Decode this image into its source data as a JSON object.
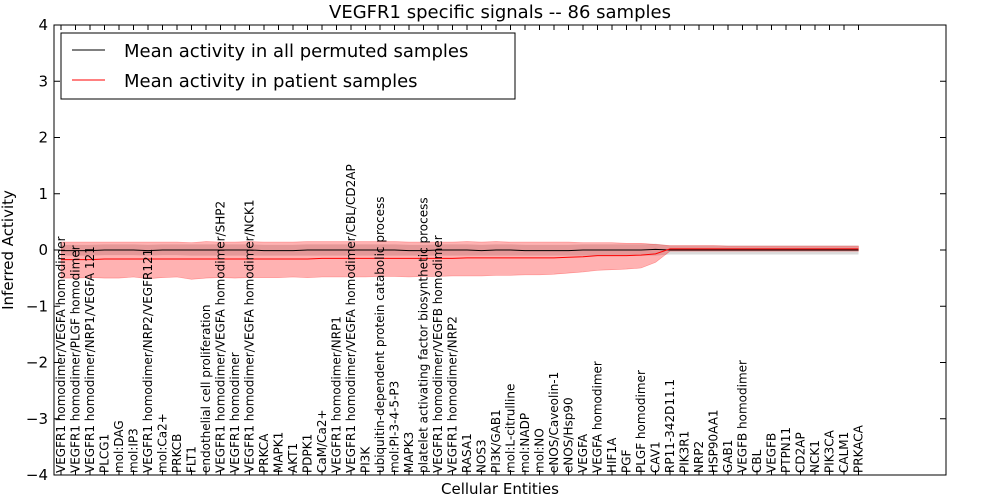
{
  "chart_data": {
    "type": "line",
    "title": "VEGFR1 specific signals -- 86 samples",
    "xlabel": "Cellular Entities",
    "ylabel": "Inferred Activity",
    "ylim": [
      -4,
      4
    ],
    "yticks": [
      -4,
      -3,
      -2,
      -1,
      0,
      1,
      2,
      3,
      4
    ],
    "grid": false,
    "legend_position": "top-left",
    "categories": [
      "VEGFR1 homodimer/VEGFA homodimer",
      "VEGFR1 homodimer/PLGF homodimer",
      "VEGFR1 homodimer/NRP1/VEGFA 121",
      "PLCG1",
      "mol:DAG",
      "mol:IP3",
      "VEGFR1 homodimer/NRP2/VEGFR121",
      "mol:Ca2+",
      "PRKCB",
      "FLT1",
      "endothelial cell proliferation",
      "VEGFR1 homodimer/VEGFA homodimer/SHP2",
      "VEGFR1 homodimer",
      "VEGFR1 homodimer/VEGFA homodimer/NCK1",
      "PRKCA",
      "MAPK1",
      "AKT1",
      "PDPK1",
      "CaM/Ca2+",
      "VEGFR1 homodimer/NRP1",
      "VEGFR1 homodimer/VEGFA homodimer/CBL/CD2AP",
      "PI3K",
      "ubiquitin-dependent protein catabolic process",
      "mol:PI-3-4-5-P3",
      "MAPK3",
      "platelet activating factor biosynthetic process",
      "VEGFR1 homodimer/VEGFB homodimer",
      "VEGFR1 homodimer/NRP2",
      "RASA1",
      "NOS3",
      "PI3K/GAB1",
      "mol:L-citrulline",
      "mol:NADP",
      "mol:NO",
      "eNOS/Caveolin-1",
      "eNOS/Hsp90",
      "VEGFA",
      "VEGFA homodimer",
      "HIF1A",
      "PGF",
      "PLGF homodimer",
      "CAV1",
      "RP11-342D11.1",
      "PIK3R1",
      "NRP2",
      "HSP90AA1",
      "GAB1",
      "VEGFB homodimer",
      "CBL",
      "VEGFB",
      "PTPN11",
      "CD2AP",
      "NCK1",
      "PIK3CA",
      "CALM1",
      "PRKACA"
    ],
    "series": [
      {
        "name": "Mean activity in all permuted samples",
        "color": "#000000",
        "values": [
          -0.01,
          -0.01,
          -0.01,
          0,
          0,
          0,
          -0.01,
          0,
          0,
          0,
          0,
          0,
          0,
          0,
          -0.01,
          -0.01,
          -0.01,
          0,
          0,
          0,
          0,
          0,
          0,
          0,
          -0.01,
          -0.01,
          0,
          0,
          0,
          -0.01,
          0,
          0,
          -0.01,
          -0.01,
          -0.01,
          -0.01,
          0,
          0,
          0,
          0,
          0,
          0.01,
          0,
          0,
          0,
          0,
          0,
          0,
          0,
          0,
          0,
          0,
          0,
          0,
          0,
          0
        ],
        "band": [
          -0.1,
          -0.1,
          -0.1,
          -0.09,
          -0.09,
          -0.09,
          -0.1,
          -0.09,
          -0.09,
          -0.1,
          -0.1,
          -0.1,
          -0.1,
          -0.1,
          -0.1,
          -0.1,
          -0.1,
          -0.1,
          -0.1,
          -0.1,
          -0.1,
          -0.1,
          -0.1,
          -0.1,
          -0.1,
          -0.1,
          -0.1,
          -0.1,
          -0.1,
          -0.1,
          -0.1,
          -0.1,
          -0.1,
          -0.1,
          -0.1,
          -0.1,
          -0.1,
          -0.1,
          -0.1,
          -0.1,
          -0.1,
          -0.1,
          -0.08,
          -0.08,
          -0.08,
          -0.08,
          -0.08,
          -0.08,
          -0.08,
          -0.08,
          -0.08,
          -0.08,
          -0.08,
          -0.08,
          -0.08,
          -0.08
        ],
        "band_upper": [
          0.09,
          0.09,
          0.09,
          0.1,
          0.1,
          0.1,
          0.09,
          0.1,
          0.1,
          0.1,
          0.1,
          0.1,
          0.1,
          0.1,
          0.09,
          0.09,
          0.09,
          0.1,
          0.1,
          0.1,
          0.1,
          0.1,
          0.1,
          0.1,
          0.09,
          0.09,
          0.1,
          0.1,
          0.1,
          0.09,
          0.1,
          0.1,
          0.09,
          0.09,
          0.09,
          0.09,
          0.1,
          0.1,
          0.1,
          0.1,
          0.1,
          0.11,
          0.08,
          0.08,
          0.08,
          0.08,
          0.08,
          0.08,
          0.08,
          0.08,
          0.08,
          0.08,
          0.08,
          0.08,
          0.08,
          0.08
        ]
      },
      {
        "name": "Mean activity in patient samples",
        "color": "#ff0000",
        "values": [
          -0.17,
          -0.17,
          -0.17,
          -0.16,
          -0.16,
          -0.16,
          -0.16,
          -0.16,
          -0.16,
          -0.16,
          -0.16,
          -0.16,
          -0.16,
          -0.16,
          -0.16,
          -0.16,
          -0.16,
          -0.16,
          -0.15,
          -0.15,
          -0.15,
          -0.15,
          -0.15,
          -0.15,
          -0.15,
          -0.15,
          -0.15,
          -0.15,
          -0.14,
          -0.14,
          -0.14,
          -0.14,
          -0.14,
          -0.14,
          -0.14,
          -0.13,
          -0.12,
          -0.1,
          -0.1,
          -0.1,
          -0.09,
          -0.07,
          0.02,
          0.02,
          0.02,
          0.02,
          0.02,
          0.02,
          0.02,
          0.02,
          0.02,
          0.02,
          0.02,
          0.02,
          0.02,
          0.02
        ],
        "band_lower": [
          -0.5,
          -0.5,
          -0.49,
          -0.5,
          -0.5,
          -0.48,
          -0.51,
          -0.49,
          -0.48,
          -0.52,
          -0.5,
          -0.49,
          -0.5,
          -0.49,
          -0.49,
          -0.49,
          -0.48,
          -0.49,
          -0.48,
          -0.48,
          -0.48,
          -0.48,
          -0.47,
          -0.47,
          -0.48,
          -0.47,
          -0.47,
          -0.46,
          -0.46,
          -0.46,
          -0.45,
          -0.45,
          -0.44,
          -0.44,
          -0.43,
          -0.41,
          -0.39,
          -0.36,
          -0.35,
          -0.34,
          -0.32,
          -0.22,
          -0.02,
          -0.02,
          -0.02,
          -0.02,
          -0.02,
          -0.02,
          -0.02,
          -0.02,
          -0.02,
          -0.02,
          -0.02,
          -0.02,
          -0.02,
          -0.02
        ],
        "band_upper": [
          0.14,
          0.14,
          0.14,
          0.14,
          0.14,
          0.14,
          0.14,
          0.14,
          0.14,
          0.13,
          0.15,
          0.14,
          0.14,
          0.15,
          0.14,
          0.14,
          0.14,
          0.15,
          0.15,
          0.15,
          0.15,
          0.15,
          0.15,
          0.15,
          0.14,
          0.14,
          0.14,
          0.14,
          0.15,
          0.14,
          0.15,
          0.14,
          0.14,
          0.14,
          0.14,
          0.14,
          0.13,
          0.13,
          0.13,
          0.12,
          0.12,
          0.1,
          0.08,
          0.08,
          0.08,
          0.08,
          0.07,
          0.07,
          0.07,
          0.07,
          0.07,
          0.07,
          0.07,
          0.07,
          0.07,
          0.07
        ]
      }
    ]
  }
}
